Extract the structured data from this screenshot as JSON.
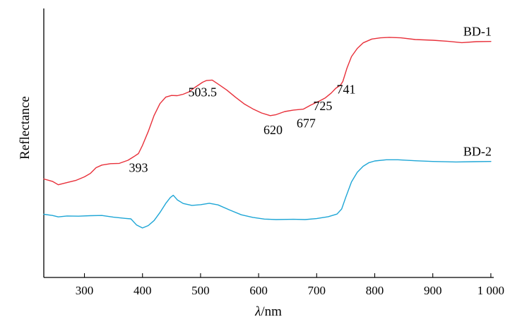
{
  "chart_data": {
    "type": "line",
    "title": "",
    "xlabel_symbol": "λ",
    "xlabel_unit": "/nm",
    "ylabel": "Reflectance",
    "xlim": [
      230,
      1005
    ],
    "ylim": [
      0,
      1
    ],
    "x_ticks": [
      300,
      400,
      500,
      600,
      700,
      800,
      900,
      1000
    ],
    "x_tick_labels": [
      "300",
      "400",
      "500",
      "600",
      "700",
      "800",
      "900",
      "1 000"
    ],
    "grid": false,
    "series": [
      {
        "name": "BD-1",
        "color": "#e8303a",
        "points": [
          [
            230,
            0.372
          ],
          [
            245,
            0.362
          ],
          [
            255,
            0.348
          ],
          [
            270,
            0.357
          ],
          [
            285,
            0.366
          ],
          [
            300,
            0.381
          ],
          [
            310,
            0.395
          ],
          [
            320,
            0.419
          ],
          [
            330,
            0.43
          ],
          [
            345,
            0.436
          ],
          [
            360,
            0.437
          ],
          [
            375,
            0.45
          ],
          [
            385,
            0.465
          ],
          [
            393,
            0.478
          ],
          [
            400,
            0.512
          ],
          [
            410,
            0.57
          ],
          [
            420,
            0.637
          ],
          [
            430,
            0.686
          ],
          [
            440,
            0.713
          ],
          [
            450,
            0.72
          ],
          [
            460,
            0.719
          ],
          [
            470,
            0.725
          ],
          [
            480,
            0.735
          ],
          [
            490,
            0.753
          ],
          [
            503.5,
            0.775
          ],
          [
            510,
            0.782
          ],
          [
            520,
            0.784
          ],
          [
            530,
            0.768
          ],
          [
            545,
            0.743
          ],
          [
            560,
            0.713
          ],
          [
            575,
            0.685
          ],
          [
            590,
            0.664
          ],
          [
            605,
            0.647
          ],
          [
            620,
            0.636
          ],
          [
            630,
            0.64
          ],
          [
            645,
            0.653
          ],
          [
            660,
            0.659
          ],
          [
            677,
            0.663
          ],
          [
            690,
            0.68
          ],
          [
            705,
            0.697
          ],
          [
            715,
            0.71
          ],
          [
            725,
            0.73
          ],
          [
            733,
            0.75
          ],
          [
            741,
            0.763
          ],
          [
            745,
            0.778
          ],
          [
            752,
            0.833
          ],
          [
            760,
            0.882
          ],
          [
            770,
            0.916
          ],
          [
            780,
            0.939
          ],
          [
            795,
            0.955
          ],
          [
            810,
            0.96
          ],
          [
            825,
            0.962
          ],
          [
            845,
            0.96
          ],
          [
            870,
            0.953
          ],
          [
            900,
            0.95
          ],
          [
            925,
            0.946
          ],
          [
            950,
            0.94
          ],
          [
            975,
            0.944
          ],
          [
            1000,
            0.945
          ]
        ]
      },
      {
        "name": "BD-2",
        "color": "#1ea6d6",
        "points": [
          [
            230,
            0.225
          ],
          [
            245,
            0.22
          ],
          [
            255,
            0.214
          ],
          [
            270,
            0.218
          ],
          [
            290,
            0.217
          ],
          [
            310,
            0.219
          ],
          [
            330,
            0.22
          ],
          [
            350,
            0.213
          ],
          [
            370,
            0.208
          ],
          [
            380,
            0.206
          ],
          [
            390,
            0.18
          ],
          [
            400,
            0.168
          ],
          [
            410,
            0.178
          ],
          [
            420,
            0.199
          ],
          [
            430,
            0.232
          ],
          [
            440,
            0.27
          ],
          [
            448,
            0.295
          ],
          [
            453,
            0.304
          ],
          [
            460,
            0.285
          ],
          [
            470,
            0.27
          ],
          [
            485,
            0.262
          ],
          [
            500,
            0.265
          ],
          [
            515,
            0.271
          ],
          [
            530,
            0.264
          ],
          [
            550,
            0.243
          ],
          [
            570,
            0.223
          ],
          [
            590,
            0.212
          ],
          [
            610,
            0.205
          ],
          [
            630,
            0.203
          ],
          [
            660,
            0.204
          ],
          [
            680,
            0.203
          ],
          [
            700,
            0.207
          ],
          [
            720,
            0.215
          ],
          [
            735,
            0.226
          ],
          [
            743,
            0.247
          ],
          [
            750,
            0.295
          ],
          [
            760,
            0.36
          ],
          [
            770,
            0.4
          ],
          [
            780,
            0.425
          ],
          [
            790,
            0.44
          ],
          [
            800,
            0.447
          ],
          [
            820,
            0.452
          ],
          [
            840,
            0.452
          ],
          [
            870,
            0.448
          ],
          [
            900,
            0.445
          ],
          [
            940,
            0.443
          ],
          [
            970,
            0.444
          ],
          [
            1000,
            0.445
          ]
        ]
      }
    ],
    "annotations": [
      {
        "text": "393",
        "x": 393
      },
      {
        "text": "503.5",
        "x": 503.5
      },
      {
        "text": "620",
        "x": 620
      },
      {
        "text": "677",
        "x": 677
      },
      {
        "text": "725",
        "x": 725
      },
      {
        "text": "741",
        "x": 741
      }
    ]
  }
}
